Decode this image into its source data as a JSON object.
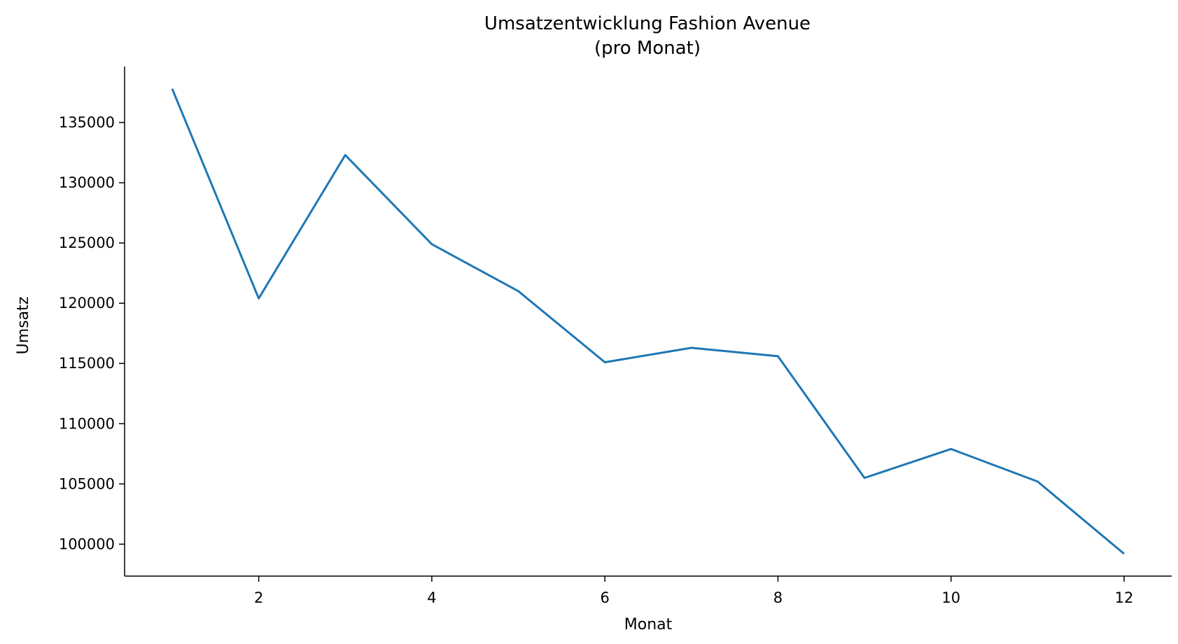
{
  "chart_data": {
    "type": "line",
    "title_line1": "Umsatzentwicklung Fashion Avenue",
    "title_line2": "(pro Monat)",
    "xlabel": "Monat",
    "ylabel": "Umsatz",
    "x": [
      1,
      2,
      3,
      4,
      5,
      6,
      7,
      8,
      9,
      10,
      11,
      12
    ],
    "series": [
      {
        "values": [
          137800,
          120400,
          132300,
          124900,
          121000,
          115100,
          116300,
          115600,
          105500,
          107900,
          105200,
          99200
        ]
      }
    ],
    "xlim": [
      0.45,
      12.55
    ],
    "ylim": [
      97350,
      139650
    ],
    "xticks": [
      2,
      4,
      6,
      8,
      10,
      12
    ],
    "yticks": [
      100000,
      105000,
      110000,
      115000,
      120000,
      125000,
      130000,
      135000
    ],
    "xtick_labels": [
      "2",
      "4",
      "6",
      "8",
      "10",
      "12"
    ],
    "ytick_labels": [
      "100000",
      "105000",
      "110000",
      "115000",
      "120000",
      "125000",
      "130000",
      "135000"
    ],
    "grid": false,
    "line_color": "#1f77b4"
  }
}
